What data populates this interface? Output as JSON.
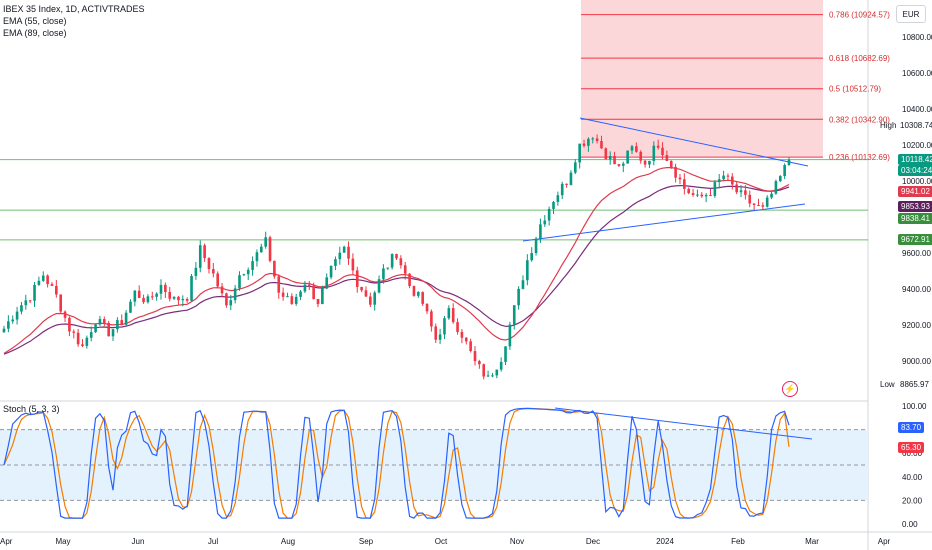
{
  "header": {
    "title": "IBEX 35 Index, 1D, ACTIVTRADES",
    "ema55": "EMA (55, close)",
    "ema89": "EMA (89, close)",
    "stoch": "Stoch (5, 3, 3)",
    "currency": "EUR"
  },
  "price_labels": {
    "high_label": "High",
    "high_value": "10308.74",
    "low_label": "Low",
    "low_value": "8865.97",
    "last": "10118.42",
    "countdown": "03:04:24",
    "ema55_value": "9941.02",
    "ema89_value": "9853.93",
    "line1": "9838.41",
    "line2": "9672.91",
    "stoch_k": "83.70",
    "stoch_d": "65.30"
  },
  "icons": {
    "flash": "flash-icon"
  },
  "colors": {
    "up": "#089981",
    "down": "#f23645",
    "ema55": "#e03a4e",
    "ema89": "#7b2d7b",
    "fib": "#f23645",
    "trend": "#2962ff",
    "hline": "#4caf50",
    "stoch_k": "#2962ff",
    "stoch_d": "#f57c00",
    "stoch_band": "#e3f2fd"
  },
  "chart_data": [
    {
      "type": "candlestick",
      "title": "IBEX 35 Index, 1D, ACTIVTRADES",
      "ylim": [
        8700,
        10950
      ],
      "yticks": [
        9000,
        9200,
        9400,
        9600,
        9800,
        10000,
        10200,
        10400,
        10600,
        10800
      ],
      "x_ticks": [
        "Apr",
        "May",
        "Jun",
        "Jul",
        "Aug",
        "Sep",
        "Oct",
        "Nov",
        "Dec",
        "2024",
        "Feb",
        "Mar",
        "Apr"
      ],
      "close_path": [
        [
          "Apr",
          9180
        ],
        [
          "Apr",
          9290
        ],
        [
          "Apr",
          9360
        ],
        [
          "May",
          9480
        ],
        [
          "May",
          9360
        ],
        [
          "May",
          9180
        ],
        [
          "May",
          9080
        ],
        [
          "May",
          9230
        ],
        [
          "May",
          9160
        ],
        [
          "Jun",
          9220
        ],
        [
          "Jun",
          9380
        ],
        [
          "Jun",
          9330
        ],
        [
          "Jun",
          9420
        ],
        [
          "Jun",
          9340
        ],
        [
          "Jun",
          9360
        ],
        [
          "Jul",
          9620
        ],
        [
          "Jul",
          9480
        ],
        [
          "Jul",
          9300
        ],
        [
          "Jul",
          9480
        ],
        [
          "Jul",
          9560
        ],
        [
          "Jul",
          9660
        ],
        [
          "Aug",
          9380
        ],
        [
          "Aug",
          9320
        ],
        [
          "Aug",
          9440
        ],
        [
          "Aug",
          9330
        ],
        [
          "Aug",
          9500
        ],
        [
          "Sep",
          9620
        ],
        [
          "Sep",
          9440
        ],
        [
          "Sep",
          9330
        ],
        [
          "Sep",
          9500
        ],
        [
          "Sep",
          9600
        ],
        [
          "Sep",
          9420
        ],
        [
          "Oct",
          9320
        ],
        [
          "Oct",
          9120
        ],
        [
          "Oct",
          9270
        ],
        [
          "Oct",
          9150
        ],
        [
          "Oct",
          8990
        ],
        [
          "Oct",
          8900
        ],
        [
          "Nov",
          9020
        ],
        [
          "Nov",
          9290
        ],
        [
          "Nov",
          9560
        ],
        [
          "Nov",
          9760
        ],
        [
          "Nov",
          9900
        ],
        [
          "Nov",
          10000
        ],
        [
          "Dec",
          10200
        ],
        [
          "Dec",
          10260
        ],
        [
          "Dec",
          10150
        ],
        [
          "Dec",
          10070
        ],
        [
          "Dec",
          10180
        ],
        [
          "Dec",
          10100
        ],
        [
          "2024",
          10210
        ],
        [
          "2024",
          10090
        ],
        [
          "2024",
          9960
        ],
        [
          "2024",
          9900
        ],
        [
          "2024",
          9940
        ],
        [
          "Feb",
          10030
        ],
        [
          "Feb",
          9940
        ],
        [
          "Feb",
          9880
        ],
        [
          "Feb",
          9840
        ],
        [
          "Feb",
          9970
        ],
        [
          "Feb",
          10118.42
        ]
      ],
      "high": 10308.74,
      "low": 8865.97,
      "last": 10118.42,
      "fibonacci": [
        {
          "level": "0.236",
          "price": 10132.69
        },
        {
          "level": "0.382",
          "price": 10342.9
        },
        {
          "level": "0.5",
          "price": 10512.79
        },
        {
          "level": "0.618",
          "price": 10682.69
        },
        {
          "level": "0.786",
          "price": 10924.57
        }
      ],
      "horizontal_lines": [
        10118.42,
        9838.41,
        9672.91
      ],
      "ema55_last": 9941.02,
      "ema89_last": 9853.93
    },
    {
      "type": "line",
      "title": "Stoch (5, 3, 3)",
      "ylim": [
        0,
        100
      ],
      "yticks": [
        0,
        20,
        40,
        60,
        80,
        100
      ],
      "bands": [
        20,
        50,
        80
      ],
      "series": [
        {
          "name": "%K",
          "last": 83.7
        },
        {
          "name": "%D",
          "last": 65.3
        }
      ]
    }
  ]
}
